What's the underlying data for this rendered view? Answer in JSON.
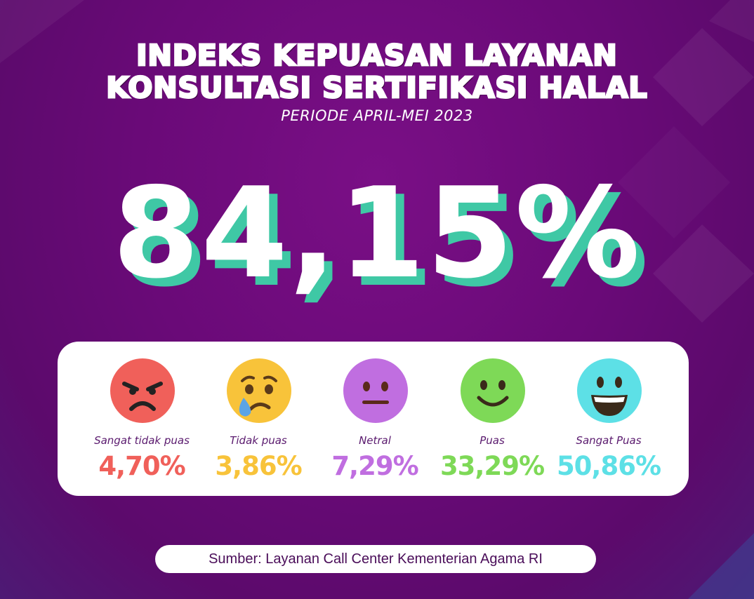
{
  "title_line1": "INDEKS KEPUASAN LAYANAN",
  "title_line2": "KONSULTASI SERTIFIKASI HALAL",
  "subtitle": "PERIODE APRIL-MEI 2023",
  "overall_index": "84,15%",
  "colors": {
    "background": "#6a0a78",
    "big_value_shadow": "#3fc8a5",
    "card": "#ffffff"
  },
  "ratings": [
    {
      "label": "Sangat tidak puas",
      "value": "4,70%",
      "color": "#f0605a",
      "icon": "angry-face-icon"
    },
    {
      "label": "Tidak puas",
      "value": "3,86%",
      "color": "#f8c33a",
      "icon": "crying-face-icon"
    },
    {
      "label": "Netral",
      "value": "7,29%",
      "color": "#c06ee0",
      "icon": "neutral-face-icon"
    },
    {
      "label": "Puas",
      "value": "33,29%",
      "color": "#7ed957",
      "icon": "smiling-face-icon"
    },
    {
      "label": "Sangat Puas",
      "value": "50,86%",
      "color": "#5de0e6",
      "icon": "grinning-face-icon"
    }
  ],
  "source": "Sumber: Layanan Call Center Kementerian Agama RI"
}
